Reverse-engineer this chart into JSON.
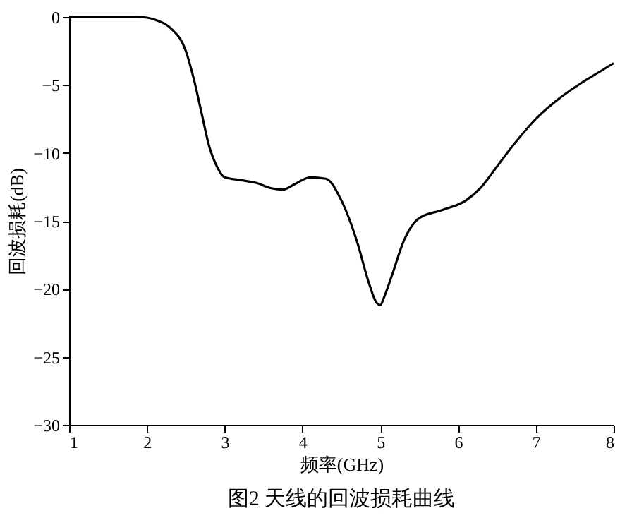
{
  "chart_data": {
    "type": "line",
    "title": "图2  天线的回波损耗曲线",
    "xlabel": "频率(GHz)",
    "ylabel": "回波损耗(dB)",
    "x": [
      1,
      1.5,
      1.9,
      2.1,
      2.3,
      2.5,
      2.6,
      2.7,
      2.8,
      2.9,
      3.0,
      3.2,
      3.4,
      3.6,
      3.75,
      3.9,
      4.1,
      4.3,
      4.5,
      4.7,
      4.85,
      4.95,
      5.0,
      5.05,
      5.15,
      5.3,
      5.5,
      5.8,
      6.1,
      6.3,
      6.5,
      6.7,
      7.0,
      7.3,
      7.6,
      7.8,
      8
    ],
    "series": [
      {
        "color": "#000000",
        "values": [
          0,
          0,
          0,
          -0.2,
          -0.8,
          -2.5,
          -4.5,
          -7,
          -9.5,
          -11,
          -11.8,
          -12,
          -12.2,
          -12.6,
          -12.7,
          -12.3,
          -11.8,
          -11.9,
          -13.5,
          -16.5,
          -19.5,
          -21,
          -21.2,
          -20.6,
          -19,
          -16.5,
          -14.8,
          -14.2,
          -13.5,
          -12.5,
          -11,
          -9.5,
          -7.5,
          -6,
          -4.8,
          -4.1,
          -3.4
        ]
      }
    ],
    "xlim": [
      1,
      8
    ],
    "xticks": [
      1,
      2,
      3,
      4,
      5,
      6,
      7,
      8
    ],
    "ylim": [
      -30,
      0
    ],
    "yticks": [
      -30,
      -25,
      -20,
      -15,
      -10,
      -5,
      0
    ],
    "grid": false,
    "line_style": "solid"
  }
}
